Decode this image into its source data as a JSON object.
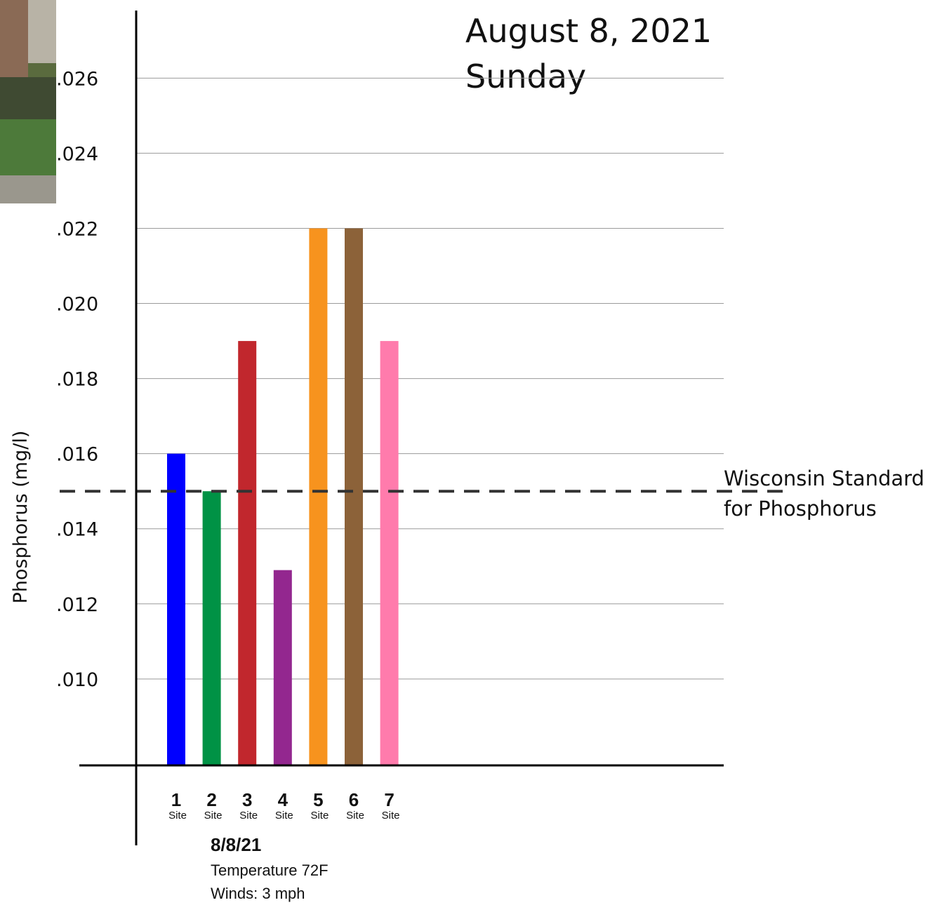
{
  "chart_data": {
    "type": "bar",
    "title_lines": [
      "August 8, 2021",
      "Sunday"
    ],
    "y_label": "Phosphorus (mg/l)",
    "categories": [
      "1",
      "2",
      "3",
      "4",
      "5",
      "6",
      "7"
    ],
    "category_sublabels": [
      "Site",
      "Site",
      "Site",
      "Site",
      "Site",
      "Site",
      "Site"
    ],
    "values": [
      0.016,
      0.015,
      0.019,
      0.0129,
      0.022,
      0.022,
      0.019
    ],
    "colors": [
      "#0000ff",
      "#009245",
      "#c1272d",
      "#93278f",
      "#f7931e",
      "#8c6239",
      "#ff7bac"
    ],
    "ylim": [
      0.0077,
      0.0278
    ],
    "yticks": [
      {
        "value": 0.01,
        "label": ".010"
      },
      {
        "value": 0.012,
        "label": ".012"
      },
      {
        "value": 0.014,
        "label": ".014"
      },
      {
        "value": 0.016,
        "label": ".016"
      },
      {
        "value": 0.018,
        "label": ".018"
      },
      {
        "value": 0.02,
        "label": ".020"
      },
      {
        "value": 0.022,
        "label": ".022"
      },
      {
        "value": 0.024,
        "label": ".024"
      },
      {
        "value": 0.026,
        "label": ".026"
      }
    ],
    "grid": true,
    "reference_line": {
      "value": 0.015,
      "label_lines": [
        "Wisconsin Standard",
        "for Phosphorus"
      ]
    },
    "notes": [
      "8/8/21",
      "Temperature 72F",
      "Winds: 3 mph"
    ]
  }
}
